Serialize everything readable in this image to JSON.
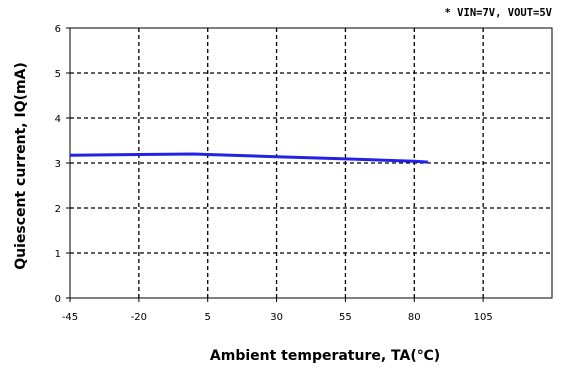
{
  "chart_data": {
    "type": "line",
    "annotation": "* VIN=7V,  VOUT=5V",
    "xlabel": "Ambient temperature, TA(℃)",
    "ylabel": "Quiescent current, IQ(mA)",
    "xlim": [
      -45,
      130
    ],
    "ylim": [
      0,
      6
    ],
    "x_ticks": [
      -45,
      -20,
      5,
      30,
      55,
      80,
      105
    ],
    "y_ticks": [
      0,
      1,
      2,
      3,
      4,
      5,
      6
    ],
    "x_tick_labels": [
      "-45",
      "-20",
      "5",
      "30",
      "55",
      "80",
      "105"
    ],
    "y_tick_labels": [
      "0",
      "1",
      "2",
      "3",
      "4",
      "5",
      "6"
    ],
    "grid": true,
    "line_color": "#2323e6",
    "series": [
      {
        "x": [
          -45,
          -20,
          0,
          5,
          30,
          55,
          80,
          85
        ],
        "y": [
          3.17,
          3.19,
          3.2,
          3.19,
          3.14,
          3.09,
          3.04,
          3.02
        ]
      }
    ]
  }
}
